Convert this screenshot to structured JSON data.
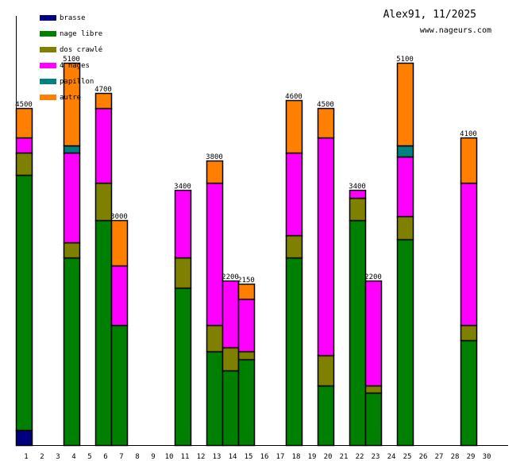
{
  "chart_data": {
    "type": "bar",
    "stacked": true,
    "title": "Alex91, 11/2025",
    "subtitle": "www.nageurs.com",
    "xlabel": "",
    "ylabel": "",
    "ylim": [
      0,
      5700
    ],
    "grid": false,
    "legend_position": "top-left",
    "categories": [
      "1",
      "2",
      "3",
      "4",
      "5",
      "6",
      "7",
      "8",
      "9",
      "10",
      "11",
      "12",
      "13",
      "14",
      "15",
      "16",
      "17",
      "18",
      "19",
      "20",
      "21",
      "22",
      "23",
      "24",
      "25",
      "26",
      "27",
      "28",
      "29",
      "30"
    ],
    "series": [
      {
        "name": "brasse",
        "color": "#000080",
        "values": [
          200,
          0,
          0,
          0,
          0,
          0,
          0,
          0,
          0,
          0,
          0,
          0,
          0,
          0,
          0,
          0,
          0,
          0,
          0,
          0,
          0,
          0,
          0,
          0,
          0,
          0,
          0,
          0,
          0,
          0
        ]
      },
      {
        "name": "nage libre",
        "color": "#008000",
        "values": [
          3400,
          0,
          0,
          2500,
          0,
          3000,
          1600,
          0,
          0,
          0,
          2100,
          0,
          1250,
          1000,
          1150,
          0,
          0,
          2500,
          0,
          800,
          0,
          3000,
          700,
          0,
          2750,
          0,
          0,
          0,
          1400,
          0
        ]
      },
      {
        "name": "dos crawlé",
        "color": "#808000",
        "values": [
          300,
          0,
          0,
          200,
          0,
          500,
          0,
          0,
          0,
          0,
          400,
          0,
          350,
          300,
          100,
          0,
          0,
          300,
          0,
          400,
          0,
          300,
          100,
          0,
          300,
          0,
          0,
          0,
          200,
          0
        ]
      },
      {
        "name": "4 nages",
        "color": "#ff00ff",
        "values": [
          200,
          0,
          0,
          1200,
          0,
          1000,
          800,
          0,
          0,
          0,
          900,
          0,
          1900,
          900,
          700,
          0,
          0,
          1100,
          0,
          2900,
          0,
          100,
          1400,
          0,
          800,
          0,
          0,
          0,
          1900,
          0
        ]
      },
      {
        "name": "papillon",
        "color": "#008080",
        "values": [
          0,
          0,
          0,
          100,
          0,
          0,
          0,
          0,
          0,
          0,
          0,
          0,
          0,
          0,
          0,
          0,
          0,
          0,
          0,
          0,
          0,
          0,
          0,
          0,
          150,
          0,
          0,
          0,
          0,
          0
        ]
      },
      {
        "name": "autre",
        "color": "#ff8000",
        "values": [
          400,
          0,
          0,
          1100,
          0,
          200,
          600,
          0,
          0,
          0,
          0,
          0,
          300,
          0,
          200,
          0,
          0,
          700,
          0,
          400,
          0,
          0,
          0,
          0,
          1100,
          0,
          0,
          0,
          600,
          0
        ]
      }
    ],
    "totals": [
      "4500",
      "",
      "",
      "5100",
      "",
      "4700",
      "3000",
      "",
      "",
      "",
      "3400",
      "",
      "3800",
      "2200",
      "2150",
      "",
      "",
      "4600",
      "",
      "4500",
      "",
      "3400",
      "2200",
      "",
      "5100",
      "",
      "",
      "",
      "4100",
      ""
    ]
  }
}
